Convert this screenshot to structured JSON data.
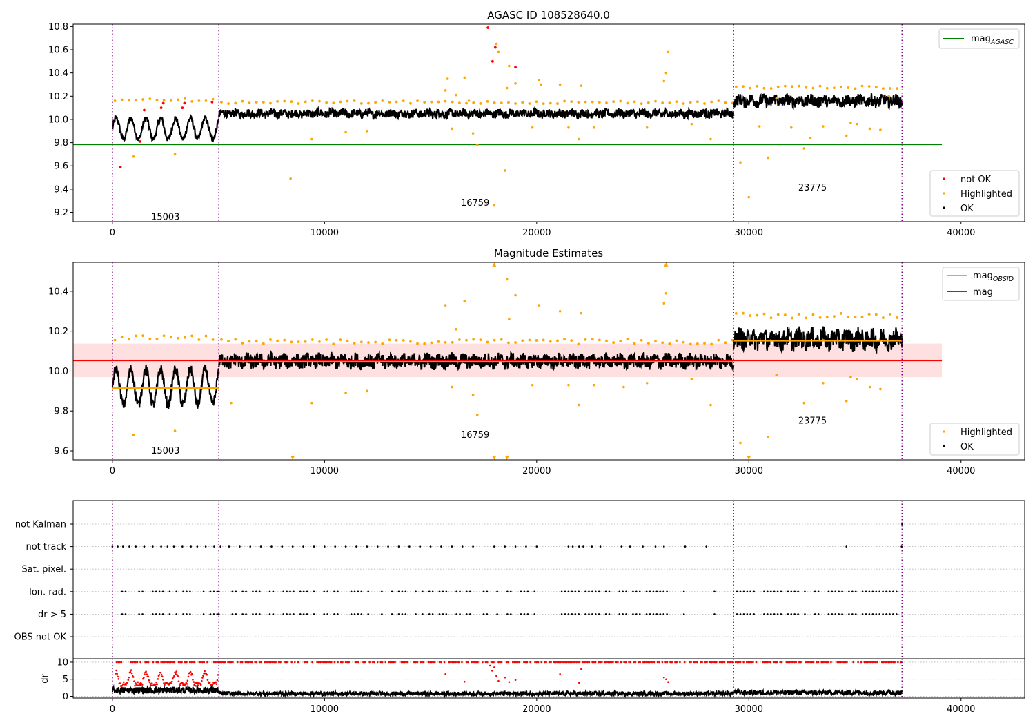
{
  "chart_data": [
    {
      "id": "agasc",
      "type": "scatter",
      "title": "AGASC ID 108528640.0",
      "xlim": [
        -1850,
        43000
      ],
      "ylim": [
        9.12,
        10.82
      ],
      "xticks": [
        0,
        10000,
        20000,
        30000,
        40000
      ],
      "yticks": [
        9.2,
        9.4,
        9.6,
        9.8,
        10.0,
        10.2,
        10.4,
        10.6,
        10.8
      ],
      "ytick_labels": [
        "9.2",
        "9.4",
        "9.6",
        "9.8",
        "10.0",
        "10.2",
        "10.4",
        "10.6",
        "10.8"
      ],
      "obs_boundaries": [
        0,
        5020,
        29280,
        37220
      ],
      "obs_labels": [
        {
          "text": "15003",
          "x": 2500,
          "y": 9.16
        },
        {
          "text": "16759",
          "x": 17100,
          "y": 9.28
        },
        {
          "text": "23775",
          "x": 33000,
          "y": 9.41
        }
      ],
      "mag_agasc": 9.785,
      "line_xrange": [
        -1850,
        39100
      ],
      "obs": [
        {
          "x0": 0,
          "x1": 5020,
          "mean": 9.92,
          "amp": 0.09,
          "hl": 10.18
        },
        {
          "x0": 5020,
          "x1": 29280,
          "mean": 10.05,
          "amp": 0.035,
          "hl": 10.16
        },
        {
          "x0": 29280,
          "x1": 37220,
          "mean": 10.16,
          "amp": 0.05,
          "hl": 10.29
        }
      ],
      "not_ok_points": [
        [
          380,
          9.59
        ],
        [
          1300,
          9.81
        ],
        [
          1500,
          10.08
        ],
        [
          2300,
          10.1
        ],
        [
          2400,
          10.14
        ],
        [
          3300,
          10.1
        ],
        [
          3400,
          10.14
        ],
        [
          4700,
          10.15
        ],
        [
          17700,
          10.79
        ],
        [
          17920,
          10.5
        ],
        [
          18050,
          10.62
        ],
        [
          19000,
          10.45
        ]
      ],
      "outlier_points": [
        [
          1000,
          9.68
        ],
        [
          2950,
          9.7
        ],
        [
          8400,
          9.49
        ],
        [
          9400,
          9.83
        ],
        [
          11000,
          9.89
        ],
        [
          12000,
          9.9
        ],
        [
          15700,
          10.25
        ],
        [
          15800,
          10.35
        ],
        [
          16000,
          9.92
        ],
        [
          16200,
          10.21
        ],
        [
          16600,
          10.36
        ],
        [
          16800,
          10.16
        ],
        [
          17000,
          9.88
        ],
        [
          17200,
          9.78
        ],
        [
          18000,
          9.26
        ],
        [
          18100,
          10.65
        ],
        [
          18200,
          10.58
        ],
        [
          18500,
          9.56
        ],
        [
          18600,
          10.27
        ],
        [
          18700,
          10.46
        ],
        [
          19000,
          10.31
        ],
        [
          19800,
          9.93
        ],
        [
          20100,
          10.34
        ],
        [
          20200,
          10.3
        ],
        [
          21100,
          10.3
        ],
        [
          21500,
          9.93
        ],
        [
          22000,
          9.83
        ],
        [
          22100,
          10.29
        ],
        [
          22700,
          9.93
        ],
        [
          25200,
          9.93
        ],
        [
          26000,
          10.33
        ],
        [
          26100,
          10.4
        ],
        [
          26200,
          10.58
        ],
        [
          27300,
          9.96
        ],
        [
          28200,
          9.83
        ],
        [
          29600,
          9.63
        ],
        [
          30000,
          9.33
        ],
        [
          30500,
          9.94
        ],
        [
          30900,
          9.67
        ],
        [
          31300,
          10.18
        ],
        [
          32000,
          9.93
        ],
        [
          32600,
          9.75
        ],
        [
          32900,
          9.84
        ],
        [
          33500,
          9.94
        ],
        [
          34600,
          9.86
        ],
        [
          34800,
          9.97
        ],
        [
          35100,
          9.96
        ],
        [
          35700,
          9.92
        ],
        [
          36200,
          9.91
        ],
        [
          36600,
          10.2
        ]
      ],
      "legend_lines": [
        {
          "label": "mag",
          "subscript": "AGASC",
          "color": "#008000"
        }
      ],
      "legend_points": [
        {
          "label": "not OK",
          "color": "#ff0000"
        },
        {
          "label": "Highlighted",
          "color": "#ffa500"
        },
        {
          "label": "OK",
          "color": "#000000"
        }
      ]
    },
    {
      "id": "estimates",
      "type": "scatter",
      "title": "Magnitude Estimates",
      "xlim": [
        -1850,
        43000
      ],
      "ylim": [
        9.555,
        10.545
      ],
      "xticks": [
        0,
        10000,
        20000,
        30000,
        40000
      ],
      "yticks": [
        9.6,
        9.8,
        10.0,
        10.2,
        10.4
      ],
      "ytick_labels": [
        "9.6",
        "9.8",
        "10.0",
        "10.2",
        "10.4"
      ],
      "obs_boundaries": [
        0,
        5020,
        29280,
        37220
      ],
      "obs_labels": [
        {
          "text": "15003",
          "x": 2500,
          "y": 9.6
        },
        {
          "text": "16759",
          "x": 17100,
          "y": 9.68
        },
        {
          "text": "23775",
          "x": 33000,
          "y": 9.75
        }
      ],
      "mag": 10.053,
      "mag_band": [
        9.97,
        10.138
      ],
      "line_xrange": [
        -1850,
        39100
      ],
      "mag_obsid": [
        {
          "x0": 0,
          "x1": 5020,
          "value": 9.915
        },
        {
          "x0": 5020,
          "x1": 29280,
          "value": 10.05
        },
        {
          "x0": 29280,
          "x1": 37220,
          "value": 10.152
        }
      ],
      "obs": [
        {
          "x0": 0,
          "x1": 5020,
          "mean": 9.92,
          "amp": 0.09,
          "hl": 10.18
        },
        {
          "x0": 5020,
          "x1": 29280,
          "mean": 10.05,
          "amp": 0.035,
          "hl": 10.16
        },
        {
          "x0": 29280,
          "x1": 37220,
          "mean": 10.16,
          "amp": 0.05,
          "hl": 10.29
        }
      ],
      "outlier_points": [
        [
          1000,
          9.68
        ],
        [
          2950,
          9.7
        ],
        [
          5600,
          9.84
        ],
        [
          9400,
          9.84
        ],
        [
          11000,
          9.89
        ],
        [
          12000,
          9.9
        ],
        [
          15700,
          10.33
        ],
        [
          16000,
          9.92
        ],
        [
          16200,
          10.21
        ],
        [
          16600,
          10.35
        ],
        [
          17000,
          9.88
        ],
        [
          17200,
          9.78
        ],
        [
          18600,
          10.46
        ],
        [
          18700,
          10.26
        ],
        [
          19000,
          10.38
        ],
        [
          19800,
          9.93
        ],
        [
          20100,
          10.33
        ],
        [
          21100,
          10.3
        ],
        [
          21500,
          9.93
        ],
        [
          22000,
          9.83
        ],
        [
          22100,
          10.29
        ],
        [
          22700,
          9.93
        ],
        [
          24100,
          9.92
        ],
        [
          25200,
          9.94
        ],
        [
          26000,
          10.34
        ],
        [
          26100,
          10.39
        ],
        [
          27300,
          9.96
        ],
        [
          28200,
          9.83
        ],
        [
          29600,
          9.64
        ],
        [
          30900,
          9.67
        ],
        [
          31300,
          9.98
        ],
        [
          32600,
          9.84
        ],
        [
          33500,
          9.94
        ],
        [
          34600,
          9.85
        ],
        [
          34800,
          9.97
        ],
        [
          35100,
          9.96
        ],
        [
          35700,
          9.92
        ],
        [
          36200,
          9.91
        ]
      ],
      "up_arrows": [
        [
          18000,
          10.535
        ],
        [
          26100,
          10.535
        ]
      ],
      "down_arrows": [
        [
          8500,
          9.565
        ],
        [
          18000,
          9.565
        ],
        [
          18600,
          9.565
        ],
        [
          30000,
          9.565
        ]
      ],
      "legend_lines": [
        {
          "label": "mag",
          "subscript": "OBSID",
          "color": "#ffa500"
        },
        {
          "label": "mag",
          "subscript": "",
          "color": "#ff0000"
        }
      ],
      "legend_points": [
        {
          "label": "Highlighted",
          "color": "#ffa500"
        },
        {
          "label": "OK",
          "color": "#000000"
        }
      ]
    },
    {
      "id": "flags",
      "type": "scatter",
      "xlim": [
        -1850,
        43000
      ],
      "categories": [
        "not Kalman",
        "not track",
        "Sat. pixel.",
        "Ion. rad.",
        "dr > 5",
        "OBS not OK"
      ],
      "obs_boundaries": [
        0,
        5020,
        29280,
        37220
      ],
      "not_track_x": [
        0,
        250,
        500,
        800,
        1100,
        1500,
        1900,
        2300,
        2600,
        2900,
        3300,
        3700,
        4000,
        4400,
        4800,
        5100,
        5500,
        6000,
        6500,
        7000,
        7500,
        8000,
        8500,
        9000,
        9500,
        10000,
        10500,
        11000,
        11500,
        12000,
        12500,
        13000,
        13500,
        14000,
        14500,
        15000,
        15500,
        16000,
        16500,
        17000,
        18000,
        18500,
        19000,
        19500,
        20000,
        21500,
        21700,
        22000,
        22200,
        22600,
        23000,
        24000,
        24400,
        25000,
        25600,
        26000,
        27000,
        28000,
        34600,
        37200
      ],
      "not_kalman_x": [
        37220
      ],
      "ion_ranges": [
        [
          300,
          5020
        ],
        [
          5020,
          28500
        ],
        [
          29280,
          37200
        ]
      ],
      "ion_gaps": [
        [
          3900,
          4200
        ],
        [
          7100,
          7400
        ],
        [
          12100,
          12300
        ],
        [
          17000,
          17400
        ],
        [
          19900,
          20900
        ],
        [
          23500,
          23800
        ],
        [
          26200,
          26800
        ],
        [
          27400,
          28000
        ],
        [
          28600,
          29280
        ]
      ]
    },
    {
      "id": "dr",
      "type": "scatter",
      "xlim": [
        -1850,
        43000
      ],
      "ylim": [
        -0.5,
        11
      ],
      "yticks": [
        0,
        5,
        10
      ],
      "ytick_labels": [
        "0",
        "5",
        "10"
      ],
      "ylabel": "dr",
      "xticks": [
        0,
        10000,
        20000,
        30000,
        40000
      ],
      "obs_boundaries": [
        0,
        5020,
        29280,
        37220
      ],
      "saturated_value": 10,
      "obs": [
        {
          "x0": 0,
          "x1": 5020,
          "mean": 1.8,
          "spread": 1.0
        },
        {
          "x0": 5020,
          "x1": 29280,
          "mean": 0.8,
          "spread": 0.6
        },
        {
          "x0": 29280,
          "x1": 37220,
          "mean": 1.1,
          "spread": 0.7
        }
      ],
      "red_points": [
        [
          15700,
          6.5
        ],
        [
          16600,
          4.3
        ],
        [
          17800,
          9.0
        ],
        [
          17900,
          7.5
        ],
        [
          18000,
          8.5
        ],
        [
          18100,
          6.0
        ],
        [
          18200,
          4.5
        ],
        [
          18500,
          5.5
        ],
        [
          18700,
          4.2
        ],
        [
          19000,
          4.8
        ],
        [
          21100,
          6.5
        ],
        [
          22000,
          4.0
        ],
        [
          22100,
          8.0
        ],
        [
          26000,
          5.5
        ],
        [
          26100,
          5.0
        ],
        [
          26200,
          4.2
        ]
      ]
    }
  ]
}
